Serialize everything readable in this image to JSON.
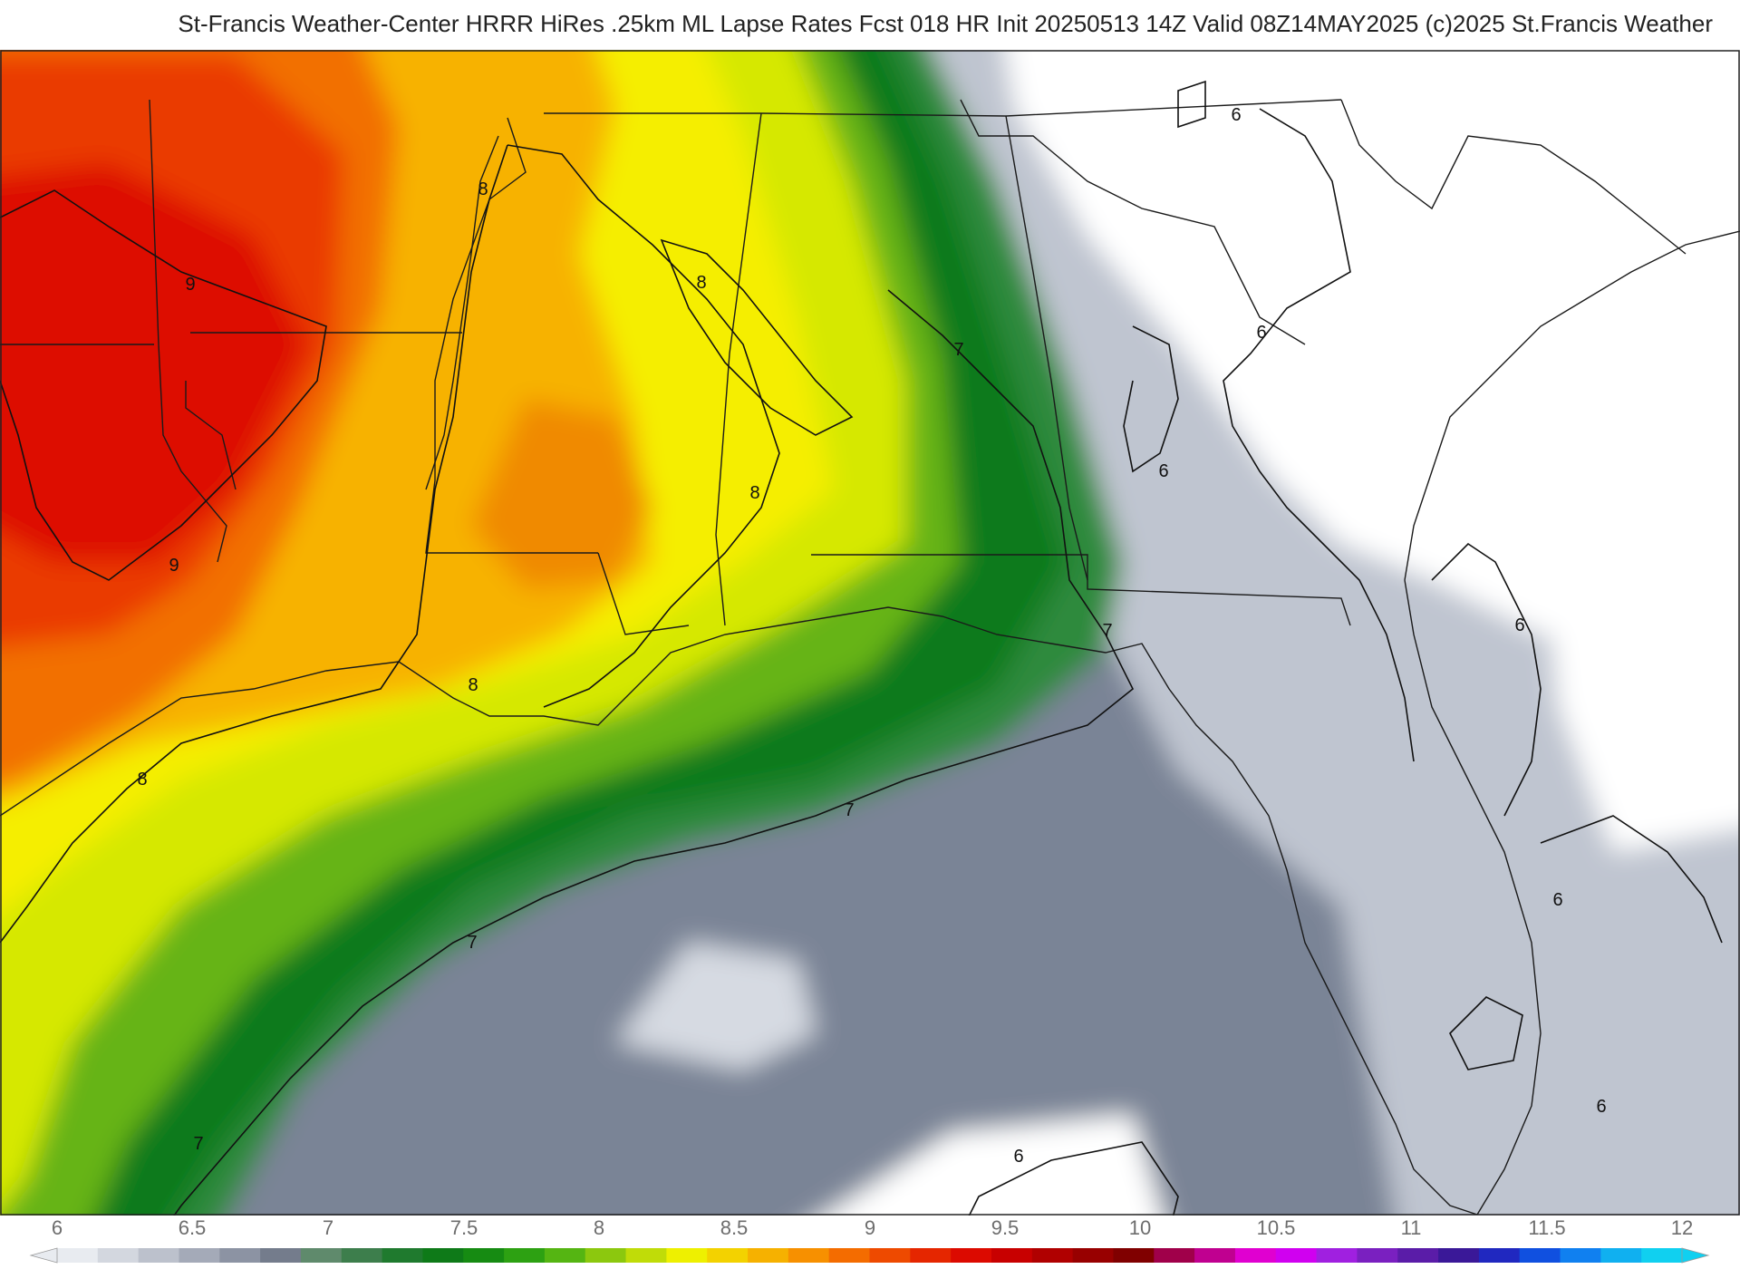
{
  "header": {
    "title": "St-Francis Weather-Center HRRR HiRes .25km ML Lapse Rates  Fcst 018 HR Init 20250513 14Z  Valid 08Z14MAY2025     (c)2025 St.Francis Weather"
  },
  "contour_labels": [
    "9",
    "9",
    "8",
    "8",
    "8",
    "8",
    "8",
    "7",
    "7",
    "7",
    "7",
    "7",
    "6",
    "6",
    "6",
    "6",
    "6",
    "6",
    "6"
  ],
  "colorbar": {
    "ticks": [
      "6",
      "6.5",
      "7",
      "7.5",
      "8",
      "8.5",
      "9",
      "9.5",
      "10",
      "10.5",
      "11",
      "11.5",
      "12"
    ],
    "colors": [
      "#e8ebf0",
      "#d3d7df",
      "#bcc1cc",
      "#a4aab8",
      "#8c93a3",
      "#747c8c",
      "#5f8a6c",
      "#3d7e4c",
      "#1f7a2e",
      "#0e7a18",
      "#168b12",
      "#2da112",
      "#55b512",
      "#8cc80e",
      "#c0dc08",
      "#eef000",
      "#f3d200",
      "#f6b100",
      "#f79000",
      "#f46c00",
      "#ee4a00",
      "#e52600",
      "#dc0a00",
      "#c80000",
      "#b00000",
      "#980000",
      "#800000",
      "#a0004a",
      "#c00090",
      "#e000d0",
      "#d000f0",
      "#a020e0",
      "#7a20c0",
      "#5a1ca8",
      "#3a1898",
      "#2028c0",
      "#1050e0",
      "#1080f0",
      "#10b0f0",
      "#10d0f0"
    ]
  }
}
